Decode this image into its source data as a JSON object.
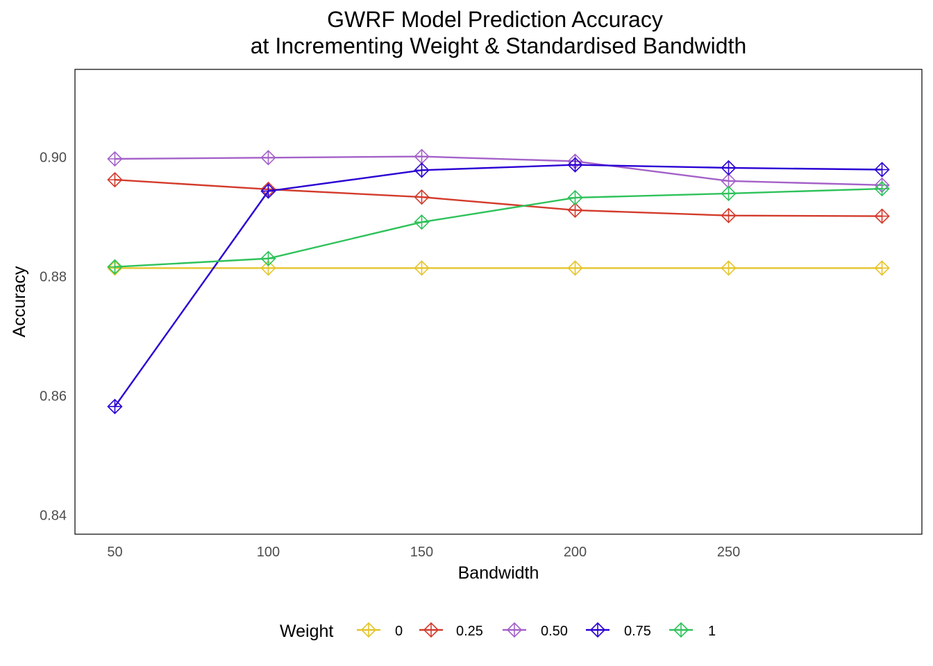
{
  "chart_data": {
    "type": "line",
    "title": [
      "GWRF Model Prediction Accuracy",
      "at Incrementing Weight & Standardised Bandwidth"
    ],
    "xlabel": "Bandwidth",
    "ylabel": "Accuracy",
    "x_ticks": [
      50,
      100,
      150,
      200,
      250
    ],
    "y_ticks": [
      0.84,
      0.86,
      0.88,
      0.9
    ],
    "y_tick_labels": [
      "0.84",
      "0.86",
      "0.88",
      "0.90"
    ],
    "xlim": [
      37,
      313
    ],
    "ylim": [
      0.8368,
      0.9147
    ],
    "grid": false,
    "marker": "diamond-plus",
    "legend": {
      "title": "Weight",
      "position": "bottom"
    },
    "x": [
      50,
      100,
      150,
      200,
      250,
      300
    ],
    "series": [
      {
        "name": "0",
        "color": "#E5C42A",
        "values": [
          0.8814,
          0.8814,
          0.8814,
          0.8814,
          0.8814,
          0.8814
        ]
      },
      {
        "name": "0.25",
        "color": "#D33B2C",
        "values": [
          0.8962,
          0.8946,
          0.8933,
          0.8911,
          0.8902,
          0.8901
        ]
      },
      {
        "name": "0.50",
        "color": "#A461C8",
        "values": [
          0.8997,
          0.8999,
          0.9001,
          0.8993,
          0.896,
          0.8953
        ]
      },
      {
        "name": "0.75",
        "color": "#2A00D4",
        "values": [
          0.8582,
          0.8943,
          0.8978,
          0.8987,
          0.8982,
          0.8979
        ]
      },
      {
        "name": "1",
        "color": "#2EC25A",
        "values": [
          0.8816,
          0.883,
          0.8891,
          0.8932,
          0.8939,
          0.8947
        ]
      }
    ]
  }
}
